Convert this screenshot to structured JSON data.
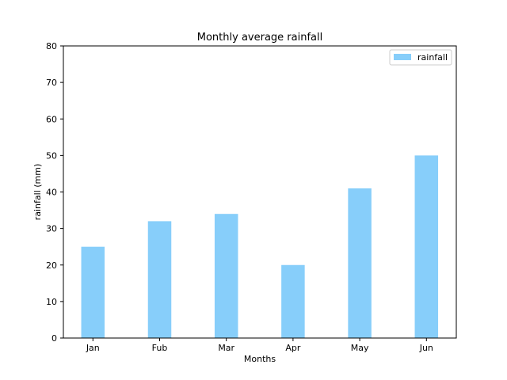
{
  "chart_data": {
    "type": "bar",
    "title": "Monthly average rainfall",
    "xlabel": "Months",
    "ylabel": "rainfall (mm)",
    "categories": [
      "Jan",
      "Fub",
      "Mar",
      "Apr",
      "May",
      "Jun"
    ],
    "series": [
      {
        "name": "rainfall",
        "values": [
          25,
          32,
          34,
          20,
          41,
          50
        ],
        "color": "#87cefa"
      }
    ],
    "ylim": [
      0,
      80
    ],
    "yticks": [
      0,
      10,
      20,
      30,
      40,
      50,
      60,
      70,
      80
    ],
    "grid": false,
    "legend": {
      "position": "top-right"
    }
  }
}
